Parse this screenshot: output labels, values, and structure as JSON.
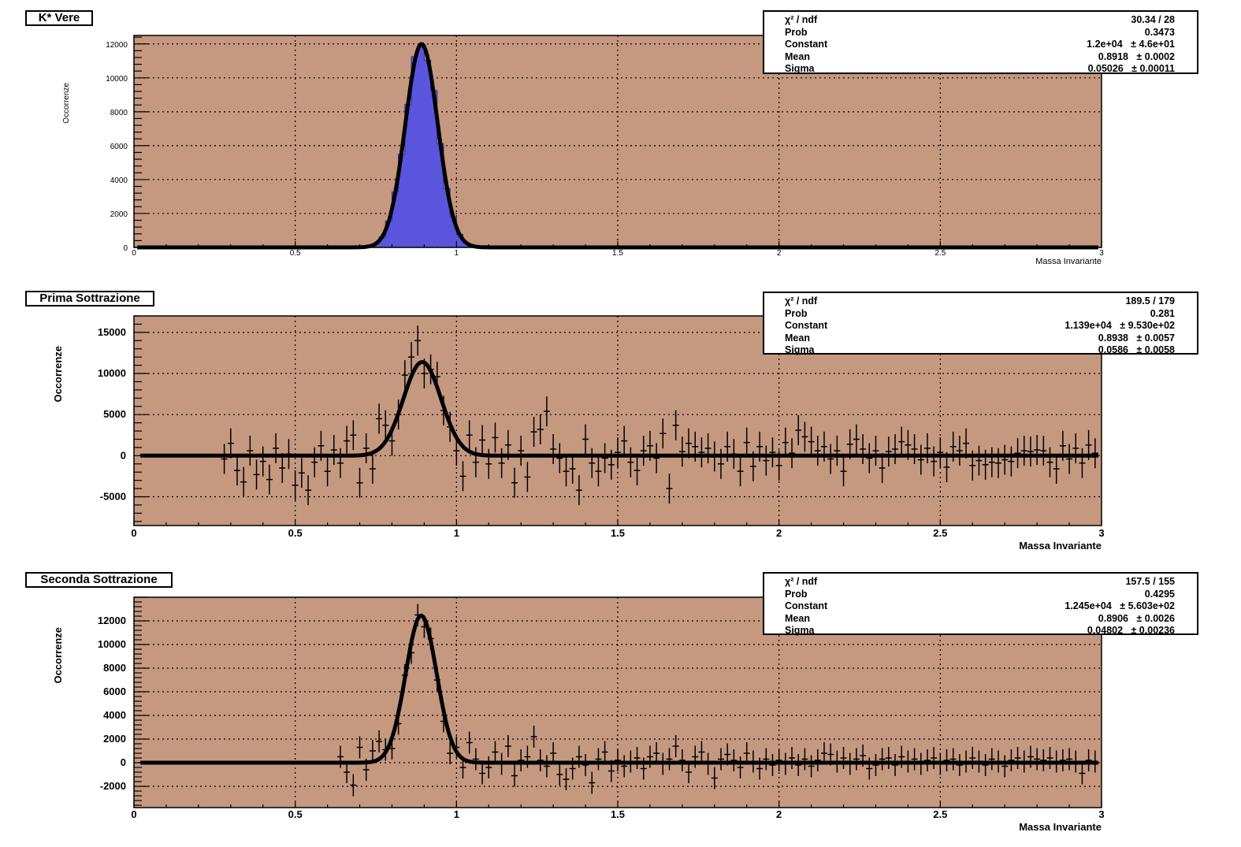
{
  "colors": {
    "frame_fill": "#c59880",
    "histogram_fill": "#5a55dc",
    "fit_line": "#000000",
    "grid": "#000000"
  },
  "chart_data": [
    {
      "type": "histogram",
      "title": "K* Vere",
      "xlabel": "Massa Invariante",
      "ylabel": "Occorrenze",
      "xlim": [
        0,
        3
      ],
      "ylim": [
        0,
        12500
      ],
      "xticks": [
        "0",
        "0.5",
        "1",
        "1.5",
        "2",
        "2.5",
        "3"
      ],
      "yticks": [
        "0",
        "2000",
        "4000",
        "6000",
        "8000",
        "10000",
        "12000"
      ],
      "grid": true,
      "fit": {
        "function": "gaus",
        "constant": 12000,
        "mean": 0.8918,
        "sigma": 0.05026
      },
      "stats": [
        {
          "label": "χ² / ndf",
          "value": "30.34 / 28"
        },
        {
          "label": "Prob",
          "value": "0.3473"
        },
        {
          "label": "Constant",
          "value": "1.2e+04   ± 4.6e+01"
        },
        {
          "label": "Mean",
          "value": "0.8918   ± 0.0002"
        },
        {
          "label": "Sigma",
          "value": "0.05026   ± 0.00011"
        }
      ]
    },
    {
      "type": "scatter",
      "title": "Prima Sottrazione",
      "xlabel": "Massa Invariante",
      "ylabel": "Occorrenze",
      "xlim": [
        0,
        3
      ],
      "ylim": [
        -8500,
        17000
      ],
      "xticks": [
        "0",
        "0.5",
        "1",
        "1.5",
        "2",
        "2.5",
        "3"
      ],
      "yticks": [
        "-5000",
        "0",
        "5000",
        "10000",
        "15000"
      ],
      "grid": true,
      "fit": {
        "function": "gaus",
        "constant": 11390,
        "mean": 0.8938,
        "sigma": 0.0586
      },
      "points": [
        {
          "x": 0.28,
          "y": -400
        },
        {
          "x": 0.3,
          "y": 1500
        },
        {
          "x": 0.32,
          "y": -1800
        },
        {
          "x": 0.34,
          "y": -3200
        },
        {
          "x": 0.36,
          "y": 600
        },
        {
          "x": 0.38,
          "y": -2300
        },
        {
          "x": 0.4,
          "y": -700
        },
        {
          "x": 0.42,
          "y": -2900
        },
        {
          "x": 0.44,
          "y": 900
        },
        {
          "x": 0.46,
          "y": -1500
        },
        {
          "x": 0.48,
          "y": 200
        },
        {
          "x": 0.5,
          "y": -3600
        },
        {
          "x": 0.52,
          "y": -2100
        },
        {
          "x": 0.54,
          "y": -4200
        },
        {
          "x": 0.56,
          "y": -800
        },
        {
          "x": 0.58,
          "y": 1200
        },
        {
          "x": 0.6,
          "y": -1900
        },
        {
          "x": 0.62,
          "y": 700
        },
        {
          "x": 0.64,
          "y": -900
        },
        {
          "x": 0.66,
          "y": 1800
        },
        {
          "x": 0.68,
          "y": 2500
        },
        {
          "x": 0.7,
          "y": -3300
        },
        {
          "x": 0.72,
          "y": 900
        },
        {
          "x": 0.74,
          "y": -1600
        },
        {
          "x": 0.76,
          "y": 4500
        },
        {
          "x": 0.78,
          "y": 3700
        },
        {
          "x": 0.8,
          "y": 1800
        },
        {
          "x": 0.82,
          "y": 5000
        },
        {
          "x": 0.84,
          "y": 9800
        },
        {
          "x": 0.86,
          "y": 12000
        },
        {
          "x": 0.88,
          "y": 14000
        },
        {
          "x": 0.9,
          "y": 10000
        },
        {
          "x": 0.92,
          "y": 10500
        },
        {
          "x": 0.94,
          "y": 9600
        },
        {
          "x": 0.96,
          "y": 5500
        },
        {
          "x": 0.98,
          "y": 3500
        },
        {
          "x": 1.0,
          "y": 600
        },
        {
          "x": 1.02,
          "y": -2500
        },
        {
          "x": 1.04,
          "y": 2500
        },
        {
          "x": 1.06,
          "y": -800
        },
        {
          "x": 1.08,
          "y": 1900
        },
        {
          "x": 1.1,
          "y": -1000
        },
        {
          "x": 1.12,
          "y": 2200
        },
        {
          "x": 1.14,
          "y": -900
        },
        {
          "x": 1.16,
          "y": 1300
        },
        {
          "x": 1.18,
          "y": -3300
        },
        {
          "x": 1.2,
          "y": 600
        },
        {
          "x": 1.22,
          "y": -2600
        },
        {
          "x": 1.24,
          "y": 2900
        },
        {
          "x": 1.26,
          "y": 3200
        },
        {
          "x": 1.28,
          "y": 5400
        },
        {
          "x": 1.3,
          "y": 800
        },
        {
          "x": 1.32,
          "y": -300
        },
        {
          "x": 1.34,
          "y": -1900
        },
        {
          "x": 1.36,
          "y": -1600
        },
        {
          "x": 1.38,
          "y": -4200
        },
        {
          "x": 1.4,
          "y": 2000
        },
        {
          "x": 1.42,
          "y": -900
        },
        {
          "x": 1.44,
          "y": -1900
        },
        {
          "x": 1.46,
          "y": -300
        },
        {
          "x": 1.48,
          "y": -1100
        },
        {
          "x": 1.5,
          "y": 400
        },
        {
          "x": 1.52,
          "y": 1800
        },
        {
          "x": 1.54,
          "y": -800
        },
        {
          "x": 1.56,
          "y": -1800
        },
        {
          "x": 1.58,
          "y": 600
        },
        {
          "x": 1.6,
          "y": 1200
        },
        {
          "x": 1.62,
          "y": -300
        },
        {
          "x": 1.64,
          "y": 2700
        },
        {
          "x": 1.66,
          "y": -4000
        },
        {
          "x": 1.68,
          "y": 3700
        },
        {
          "x": 1.7,
          "y": 500
        },
        {
          "x": 1.72,
          "y": 1500
        },
        {
          "x": 1.74,
          "y": 1100
        },
        {
          "x": 1.76,
          "y": 400
        },
        {
          "x": 1.78,
          "y": 900
        },
        {
          "x": 1.8,
          "y": -100
        },
        {
          "x": 1.82,
          "y": -1000
        },
        {
          "x": 1.84,
          "y": 1100
        },
        {
          "x": 1.86,
          "y": 200
        },
        {
          "x": 1.88,
          "y": -1900
        },
        {
          "x": 1.9,
          "y": 1600
        },
        {
          "x": 1.92,
          "y": -1300
        },
        {
          "x": 1.94,
          "y": 1100
        },
        {
          "x": 1.96,
          "y": -600
        },
        {
          "x": 1.98,
          "y": 400
        },
        {
          "x": 2.0,
          "y": -1200
        },
        {
          "x": 2.02,
          "y": 1600
        },
        {
          "x": 2.04,
          "y": 300
        },
        {
          "x": 2.06,
          "y": 3100
        },
        {
          "x": 2.08,
          "y": 2300
        },
        {
          "x": 2.1,
          "y": 1700
        },
        {
          "x": 2.12,
          "y": 600
        },
        {
          "x": 2.14,
          "y": 1100
        },
        {
          "x": 2.16,
          "y": -400
        },
        {
          "x": 2.18,
          "y": 600
        },
        {
          "x": 2.2,
          "y": -1900
        },
        {
          "x": 2.22,
          "y": 1400
        },
        {
          "x": 2.24,
          "y": 2000
        },
        {
          "x": 2.26,
          "y": 800
        },
        {
          "x": 2.28,
          "y": -300
        },
        {
          "x": 2.3,
          "y": 600
        },
        {
          "x": 2.32,
          "y": -1500
        },
        {
          "x": 2.34,
          "y": 500
        },
        {
          "x": 2.36,
          "y": 800
        },
        {
          "x": 2.38,
          "y": 1700
        },
        {
          "x": 2.4,
          "y": 1300
        },
        {
          "x": 2.42,
          "y": 800
        },
        {
          "x": 2.44,
          "y": -500
        },
        {
          "x": 2.46,
          "y": 900
        },
        {
          "x": 2.48,
          "y": -700
        },
        {
          "x": 2.5,
          "y": 400
        },
        {
          "x": 2.52,
          "y": -1400
        },
        {
          "x": 2.54,
          "y": 1100
        },
        {
          "x": 2.56,
          "y": 600
        },
        {
          "x": 2.58,
          "y": 1500
        },
        {
          "x": 2.6,
          "y": -1200
        },
        {
          "x": 2.62,
          "y": -600
        },
        {
          "x": 2.64,
          "y": -1100
        },
        {
          "x": 2.66,
          "y": -800
        },
        {
          "x": 2.68,
          "y": -900
        },
        {
          "x": 2.7,
          "y": -500
        },
        {
          "x": 2.72,
          "y": -700
        },
        {
          "x": 2.74,
          "y": 300
        },
        {
          "x": 2.76,
          "y": 600
        },
        {
          "x": 2.78,
          "y": 500
        },
        {
          "x": 2.8,
          "y": 700
        },
        {
          "x": 2.82,
          "y": 600
        },
        {
          "x": 2.84,
          "y": -800
        },
        {
          "x": 2.86,
          "y": -1600
        },
        {
          "x": 2.88,
          "y": 1200
        },
        {
          "x": 2.9,
          "y": -400
        },
        {
          "x": 2.92,
          "y": 900
        },
        {
          "x": 2.94,
          "y": -900
        },
        {
          "x": 2.96,
          "y": 1300
        },
        {
          "x": 2.98,
          "y": 300
        }
      ],
      "stats": [
        {
          "label": "χ² / ndf",
          "value": "189.5 / 179"
        },
        {
          "label": "Prob",
          "value": "0.281"
        },
        {
          "label": "Constant",
          "value": "1.139e+04   ± 9.530e+02"
        },
        {
          "label": "Mean",
          "value": "0.8938   ± 0.0057"
        },
        {
          "label": "Sigma",
          "value": "0.0586   ± 0.0058"
        }
      ]
    },
    {
      "type": "scatter",
      "title": "Seconda Sottrazione",
      "xlabel": "Massa Invariante",
      "ylabel": "Occorrenze",
      "xlim": [
        0,
        3
      ],
      "ylim": [
        -3800,
        14000
      ],
      "xticks": [
        "0",
        "0.5",
        "1",
        "1.5",
        "2",
        "2.5",
        "3"
      ],
      "yticks": [
        "-2000",
        "0",
        "2000",
        "4000",
        "6000",
        "8000",
        "10000",
        "12000"
      ],
      "grid": true,
      "fit": {
        "function": "gaus",
        "constant": 12450,
        "mean": 0.8906,
        "sigma": 0.04802
      },
      "points": [
        {
          "x": 0.64,
          "y": 500
        },
        {
          "x": 0.66,
          "y": -800
        },
        {
          "x": 0.68,
          "y": -1900
        },
        {
          "x": 0.7,
          "y": 1300
        },
        {
          "x": 0.72,
          "y": -600
        },
        {
          "x": 0.74,
          "y": 1000
        },
        {
          "x": 0.76,
          "y": 1800
        },
        {
          "x": 0.78,
          "y": 1100
        },
        {
          "x": 0.8,
          "y": 1200
        },
        {
          "x": 0.82,
          "y": 3300
        },
        {
          "x": 0.84,
          "y": 7400
        },
        {
          "x": 0.86,
          "y": 9300
        },
        {
          "x": 0.88,
          "y": 12500
        },
        {
          "x": 0.9,
          "y": 11500
        },
        {
          "x": 0.92,
          "y": 10500
        },
        {
          "x": 0.94,
          "y": 7000
        },
        {
          "x": 0.96,
          "y": 3500
        },
        {
          "x": 0.98,
          "y": 800
        },
        {
          "x": 1.0,
          "y": 1300
        },
        {
          "x": 1.02,
          "y": -400
        },
        {
          "x": 1.04,
          "y": 1700
        },
        {
          "x": 1.06,
          "y": 300
        },
        {
          "x": 1.08,
          "y": -900
        },
        {
          "x": 1.1,
          "y": -400
        },
        {
          "x": 1.12,
          "y": 900
        },
        {
          "x": 1.14,
          "y": -100
        },
        {
          "x": 1.16,
          "y": 1400
        },
        {
          "x": 1.18,
          "y": -1100
        },
        {
          "x": 1.2,
          "y": 200
        },
        {
          "x": 1.22,
          "y": 500
        },
        {
          "x": 1.24,
          "y": 2200
        },
        {
          "x": 1.26,
          "y": 200
        },
        {
          "x": 1.28,
          "y": -300
        },
        {
          "x": 1.3,
          "y": 800
        },
        {
          "x": 1.32,
          "y": -1000
        },
        {
          "x": 1.34,
          "y": -1400
        },
        {
          "x": 1.36,
          "y": -500
        },
        {
          "x": 1.38,
          "y": 500
        },
        {
          "x": 1.4,
          "y": -200
        },
        {
          "x": 1.42,
          "y": -1700
        },
        {
          "x": 1.44,
          "y": 300
        },
        {
          "x": 1.46,
          "y": 900
        },
        {
          "x": 1.48,
          "y": -700
        },
        {
          "x": 1.5,
          "y": 200
        },
        {
          "x": 1.52,
          "y": -300
        },
        {
          "x": 1.54,
          "y": 100
        },
        {
          "x": 1.56,
          "y": 400
        },
        {
          "x": 1.58,
          "y": -500
        },
        {
          "x": 1.6,
          "y": 500
        },
        {
          "x": 1.62,
          "y": 800
        },
        {
          "x": 1.64,
          "y": -100
        },
        {
          "x": 1.66,
          "y": 300
        },
        {
          "x": 1.68,
          "y": 1400
        },
        {
          "x": 1.7,
          "y": 200
        },
        {
          "x": 1.72,
          "y": -800
        },
        {
          "x": 1.74,
          "y": 500
        },
        {
          "x": 1.76,
          "y": 900
        },
        {
          "x": 1.78,
          "y": -100
        },
        {
          "x": 1.8,
          "y": -1300
        },
        {
          "x": 1.82,
          "y": 300
        },
        {
          "x": 1.84,
          "y": 700
        },
        {
          "x": 1.86,
          "y": 200
        },
        {
          "x": 1.88,
          "y": -400
        },
        {
          "x": 1.9,
          "y": 800
        },
        {
          "x": 1.92,
          "y": 100
        },
        {
          "x": 1.94,
          "y": -500
        },
        {
          "x": 1.96,
          "y": 300
        },
        {
          "x": 1.98,
          "y": -200
        },
        {
          "x": 2.0,
          "y": 200
        },
        {
          "x": 2.02,
          "y": -100
        },
        {
          "x": 2.04,
          "y": 400
        },
        {
          "x": 2.06,
          "y": -200
        },
        {
          "x": 2.08,
          "y": 300
        },
        {
          "x": 2.1,
          "y": -300
        },
        {
          "x": 2.12,
          "y": 200
        },
        {
          "x": 2.14,
          "y": 800
        },
        {
          "x": 2.16,
          "y": 700
        },
        {
          "x": 2.18,
          "y": 100
        },
        {
          "x": 2.2,
          "y": 400
        },
        {
          "x": 2.22,
          "y": -100
        },
        {
          "x": 2.24,
          "y": 300
        },
        {
          "x": 2.26,
          "y": 600
        },
        {
          "x": 2.28,
          "y": -500
        },
        {
          "x": 2.3,
          "y": -200
        },
        {
          "x": 2.32,
          "y": 300
        },
        {
          "x": 2.34,
          "y": 400
        },
        {
          "x": 2.36,
          "y": -200
        },
        {
          "x": 2.38,
          "y": 500
        },
        {
          "x": 2.4,
          "y": 100
        },
        {
          "x": 2.42,
          "y": 300
        },
        {
          "x": 2.44,
          "y": -100
        },
        {
          "x": 2.46,
          "y": 200
        },
        {
          "x": 2.48,
          "y": 400
        },
        {
          "x": 2.5,
          "y": -100
        },
        {
          "x": 2.52,
          "y": 200
        },
        {
          "x": 2.54,
          "y": 300
        },
        {
          "x": 2.56,
          "y": -200
        },
        {
          "x": 2.58,
          "y": 100
        },
        {
          "x": 2.6,
          "y": 400
        },
        {
          "x": 2.62,
          "y": 100
        },
        {
          "x": 2.64,
          "y": -200
        },
        {
          "x": 2.66,
          "y": 300
        },
        {
          "x": 2.68,
          "y": 100
        },
        {
          "x": 2.7,
          "y": -300
        },
        {
          "x": 2.72,
          "y": 200
        },
        {
          "x": 2.74,
          "y": 400
        },
        {
          "x": 2.76,
          "y": 100
        },
        {
          "x": 2.78,
          "y": 500
        },
        {
          "x": 2.8,
          "y": 300
        },
        {
          "x": 2.82,
          "y": 200
        },
        {
          "x": 2.84,
          "y": 400
        },
        {
          "x": 2.86,
          "y": 100
        },
        {
          "x": 2.88,
          "y": 200
        },
        {
          "x": 2.9,
          "y": 300
        },
        {
          "x": 2.92,
          "y": 100
        },
        {
          "x": 2.94,
          "y": -900
        },
        {
          "x": 2.96,
          "y": 200
        },
        {
          "x": 2.98,
          "y": 100
        }
      ],
      "stats": [
        {
          "label": "χ² / ndf",
          "value": "157.5 / 155"
        },
        {
          "label": "Prob",
          "value": "0.4295"
        },
        {
          "label": "Constant",
          "value": "1.245e+04   ± 5.603e+02"
        },
        {
          "label": "Mean",
          "value": "0.8906   ± 0.0026"
        },
        {
          "label": "Sigma",
          "value": "0.04802   ± 0.00236"
        }
      ]
    }
  ]
}
